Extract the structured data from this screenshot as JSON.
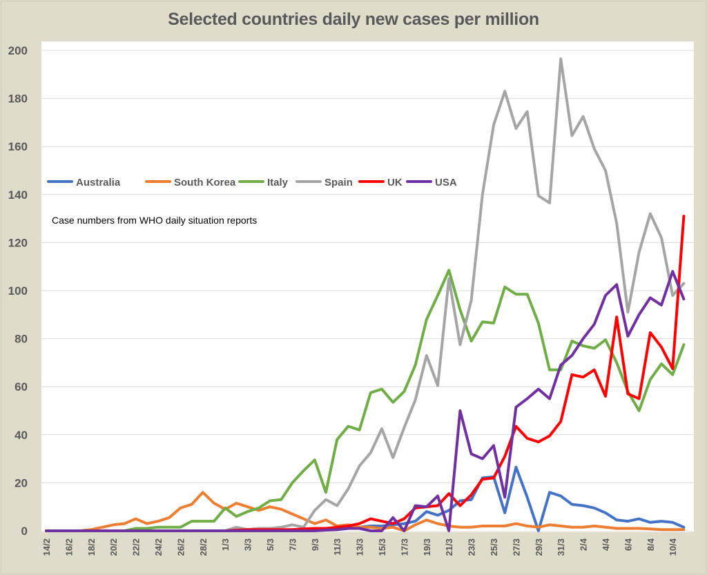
{
  "chart_data": {
    "type": "line",
    "title": "Selected countries daily new cases per million",
    "annotation": "Case numbers from WHO daily situation reports",
    "xlabel": "",
    "ylabel": "",
    "ylim": [
      0,
      200
    ],
    "yticks": [
      0,
      20,
      40,
      60,
      80,
      100,
      120,
      140,
      160,
      180,
      200
    ],
    "grid": true,
    "legend_position": "top-left inside",
    "x": [
      "14/2",
      "15/2",
      "16/2",
      "17/2",
      "18/2",
      "19/2",
      "20/2",
      "21/2",
      "22/2",
      "23/2",
      "24/2",
      "25/2",
      "26/2",
      "27/2",
      "28/2",
      "29/2",
      "1/3",
      "2/3",
      "3/3",
      "4/3",
      "5/3",
      "6/3",
      "7/3",
      "8/3",
      "9/3",
      "10/3",
      "11/3",
      "12/3",
      "13/3",
      "14/3",
      "15/3",
      "16/3",
      "17/3",
      "18/3",
      "19/3",
      "20/3",
      "21/3",
      "22/3",
      "23/3",
      "24/3",
      "25/3",
      "26/3",
      "27/3",
      "28/3",
      "29/3",
      "30/3",
      "31/3",
      "1/4",
      "2/4",
      "3/4",
      "4/4",
      "5/4",
      "6/4",
      "7/4",
      "8/4",
      "9/4",
      "10/4",
      "11/4"
    ],
    "xtick_labels": [
      "14/2",
      "16/2",
      "18/2",
      "20/2",
      "22/2",
      "24/2",
      "26/2",
      "28/2",
      "1/3",
      "3/3",
      "5/3",
      "7/3",
      "9/3",
      "11/3",
      "13/3",
      "15/3",
      "17/3",
      "19/3",
      "21/3",
      "23/3",
      "25/3",
      "27/3",
      "29/3",
      "31/3",
      "2/4",
      "4/4",
      "6/4",
      "8/4",
      "10/4"
    ],
    "series": [
      {
        "name": "Australia",
        "color": "#4472c4",
        "values": [
          0,
          0,
          0,
          0,
          0,
          0,
          0,
          0,
          0,
          0,
          0,
          0,
          0,
          0,
          0,
          0,
          0,
          0,
          0,
          0,
          0,
          0,
          0,
          0,
          0.5,
          0.5,
          0.5,
          1,
          1.5,
          2,
          2,
          2.5,
          3,
          4,
          8,
          6.5,
          8.5,
          12.5,
          13,
          22,
          22.5,
          7.5,
          26.5,
          14,
          0,
          16,
          14.5,
          11,
          10.5,
          9.5,
          7.5,
          4.5,
          4,
          5,
          3.5,
          4,
          3.5,
          1.5
        ]
      },
      {
        "name": "South Korea",
        "color": "#ed7d31",
        "values": [
          0,
          0,
          0,
          0,
          0.5,
          1.5,
          2.5,
          3,
          5,
          3,
          4,
          5.5,
          9.5,
          11,
          16,
          11.5,
          9,
          11.5,
          10,
          8.5,
          10,
          9,
          7,
          5,
          3,
          4.5,
          2,
          2.5,
          1.5,
          1.5,
          1,
          1.5,
          0,
          2.5,
          4.5,
          3,
          2,
          1.5,
          1.5,
          2,
          2,
          2,
          3,
          2,
          1.5,
          2.5,
          2,
          1.5,
          1.5,
          2,
          1.5,
          1,
          1,
          1,
          0.8,
          0.5,
          0.5,
          0.5
        ]
      },
      {
        "name": "Italy",
        "color": "#70ad47",
        "values": [
          0,
          0,
          0,
          0,
          0,
          0,
          0,
          0,
          1,
          1,
          1.5,
          1.5,
          1.5,
          4,
          4,
          4,
          9.5,
          6,
          8,
          9.5,
          12.5,
          13,
          20,
          25,
          29.5,
          16,
          38,
          43.5,
          42,
          57.5,
          59,
          53.5,
          58,
          69,
          88,
          98,
          108.5,
          92,
          79,
          87,
          86.5,
          101.5,
          98.5,
          98.5,
          86.5,
          67,
          67,
          79,
          77,
          76,
          79.5,
          70,
          58,
          50,
          63,
          69.5,
          65,
          77.5
        ]
      },
      {
        "name": "Spain",
        "color": "#a5a5a5",
        "values": [
          0,
          0,
          0,
          0,
          0,
          0,
          0,
          0,
          0,
          0,
          0,
          0,
          0,
          0,
          0,
          0,
          0,
          1.5,
          0.5,
          1,
          1,
          1.5,
          2.5,
          1.5,
          8.5,
          13,
          10.5,
          17.5,
          27,
          32.5,
          42.5,
          30.5,
          43,
          54.5,
          73,
          60.5,
          105,
          77.5,
          96,
          140,
          169,
          183,
          167.5,
          174.5,
          139.5,
          136.5,
          196.5,
          164.5,
          172.5,
          159,
          150,
          128,
          91,
          116,
          132,
          122,
          98,
          103
        ]
      },
      {
        "name": "UK",
        "color": "#ff0000",
        "values": [
          0,
          0,
          0,
          0,
          0,
          0,
          0,
          0,
          0,
          0,
          0,
          0,
          0,
          0,
          0,
          0,
          0,
          0.3,
          0.5,
          0.5,
          0.5,
          0.5,
          0.5,
          0.8,
          1,
          1,
          1.5,
          2,
          3,
          5,
          4,
          3,
          5,
          9.5,
          10,
          10.5,
          15.5,
          10.5,
          15,
          21.5,
          22,
          31,
          43.5,
          38.5,
          37,
          39.5,
          45.5,
          65,
          64,
          67,
          56,
          89,
          57,
          55,
          82.5,
          76.5,
          67.5,
          131
        ]
      },
      {
        "name": "USA",
        "color": "#7030a0",
        "values": [
          0,
          0,
          0,
          0,
          0,
          0,
          0,
          0,
          0,
          0,
          0,
          0,
          0,
          0,
          0,
          0,
          0,
          0,
          0,
          0,
          0,
          0,
          0,
          0,
          0,
          0.3,
          0.5,
          1,
          1,
          0,
          0,
          5.5,
          0,
          10.5,
          10,
          14.5,
          0,
          50,
          32,
          30,
          35.5,
          14,
          51.5,
          55,
          59,
          55,
          69,
          73,
          80,
          86,
          98,
          102.5,
          81,
          90,
          97,
          94,
          108,
          96.5
        ]
      }
    ]
  }
}
